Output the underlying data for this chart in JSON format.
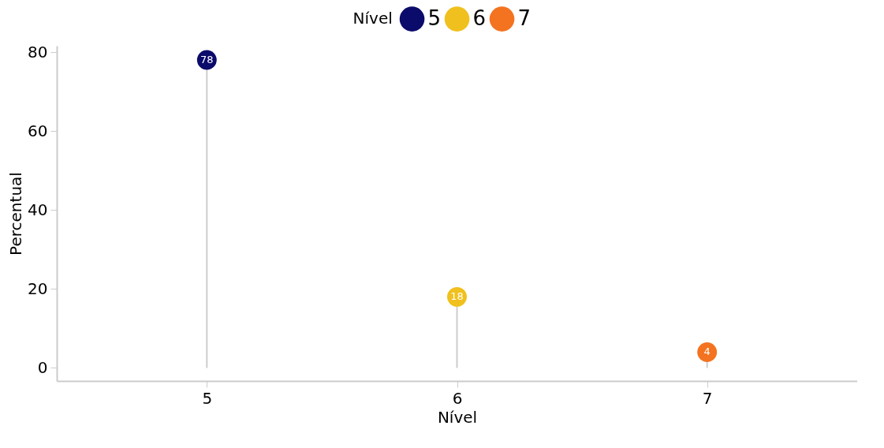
{
  "chart_data": {
    "type": "lollipop",
    "xlabel": "Nível",
    "ylabel": "Percentual",
    "legend_title": "Nível",
    "categories": [
      "5",
      "6",
      "7"
    ],
    "series": [
      {
        "name": "5",
        "color": "#0b0b6b",
        "values": [
          78,
          null,
          null
        ]
      },
      {
        "name": "6",
        "color": "#f0c01e",
        "values": [
          null,
          18,
          null
        ]
      },
      {
        "name": "7",
        "color": "#f47320",
        "values": [
          null,
          null,
          4
        ]
      }
    ],
    "ylim": [
      -3.3,
      81.6
    ],
    "yticks": [
      0,
      20,
      40,
      60,
      80
    ],
    "grid": false,
    "legend": "top",
    "data_labels": true
  }
}
